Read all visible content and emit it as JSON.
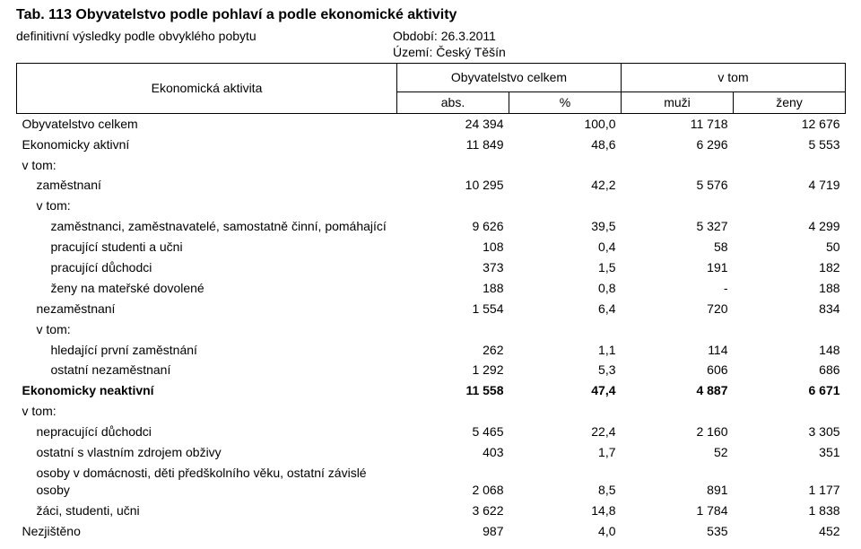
{
  "title": "Tab. 113 Obyvatelstvo podle pohlaví a podle ekonomické aktivity",
  "subtitle_left": "definitivní výsledky podle obvyklého pobytu",
  "period_label": "Období:",
  "period_value": "26.3.2011",
  "area_label": "Území:",
  "area_value": "Český Těšín",
  "header": {
    "rowhead": "Ekonomická aktivita",
    "group_left": "Obyvatelstvo celkem",
    "group_right": "v tom",
    "col1": "abs.",
    "col2": "%",
    "col3": "muži",
    "col4": "ženy"
  },
  "rows": [
    {
      "label": "Obyvatelstvo celkem",
      "indent": 0,
      "c1": "24 394",
      "c2": "100,0",
      "c3": "11 718",
      "c4": "12 676"
    },
    {
      "label": "Ekonomicky aktivní",
      "indent": 0,
      "c1": "11 849",
      "c2": "48,6",
      "c3": "6 296",
      "c4": "5 553"
    },
    {
      "label": "v tom:",
      "indent": 0,
      "c1": "",
      "c2": "",
      "c3": "",
      "c4": ""
    },
    {
      "label": "zaměstnaní",
      "indent": 1,
      "c1": "10 295",
      "c2": "42,2",
      "c3": "5 576",
      "c4": "4 719"
    },
    {
      "label": "v tom:",
      "indent": 1,
      "c1": "",
      "c2": "",
      "c3": "",
      "c4": ""
    },
    {
      "label": "zaměstnanci, zaměstnavatelé, samostatně činní, pomáhající",
      "indent": 2,
      "c1": "9 626",
      "c2": "39,5",
      "c3": "5 327",
      "c4": "4 299"
    },
    {
      "label": "pracující studenti a učni",
      "indent": 2,
      "c1": "108",
      "c2": "0,4",
      "c3": "58",
      "c4": "50"
    },
    {
      "label": "pracující důchodci",
      "indent": 2,
      "c1": "373",
      "c2": "1,5",
      "c3": "191",
      "c4": "182"
    },
    {
      "label": "ženy na mateřské dovolené",
      "indent": 2,
      "c1": "188",
      "c2": "0,8",
      "c3": "-",
      "c4": "188"
    },
    {
      "label": "nezaměstnaní",
      "indent": 1,
      "c1": "1 554",
      "c2": "6,4",
      "c3": "720",
      "c4": "834"
    },
    {
      "label": "v tom:",
      "indent": 1,
      "c1": "",
      "c2": "",
      "c3": "",
      "c4": ""
    },
    {
      "label": "hledající první zaměstnání",
      "indent": 2,
      "c1": "262",
      "c2": "1,1",
      "c3": "114",
      "c4": "148"
    },
    {
      "label": "ostatní nezaměstnaní",
      "indent": 2,
      "c1": "1 292",
      "c2": "5,3",
      "c3": "606",
      "c4": "686"
    },
    {
      "label": "Ekonomicky neaktivní",
      "indent": 0,
      "bold": true,
      "c1": "11 558",
      "c2": "47,4",
      "c3": "4 887",
      "c4": "6 671"
    },
    {
      "label": "v tom:",
      "indent": 0,
      "c1": "",
      "c2": "",
      "c3": "",
      "c4": ""
    },
    {
      "label": "nepracující důchodci",
      "indent": 1,
      "c1": "5 465",
      "c2": "22,4",
      "c3": "2 160",
      "c4": "3 305"
    },
    {
      "label": "ostatní s vlastním zdrojem obživy",
      "indent": 1,
      "c1": "403",
      "c2": "1,7",
      "c3": "52",
      "c4": "351"
    },
    {
      "label": "osoby v domácnosti, děti předškolního věku, ostatní závislé osoby",
      "indent": 1,
      "c1": "2 068",
      "c2": "8,5",
      "c3": "891",
      "c4": "1 177"
    },
    {
      "label": "žáci, studenti, učni",
      "indent": 1,
      "c1": "3 622",
      "c2": "14,8",
      "c3": "1 784",
      "c4": "1 838"
    },
    {
      "label": "Nezjištěno",
      "indent": 0,
      "c1": "987",
      "c2": "4,0",
      "c3": "535",
      "c4": "452"
    }
  ]
}
